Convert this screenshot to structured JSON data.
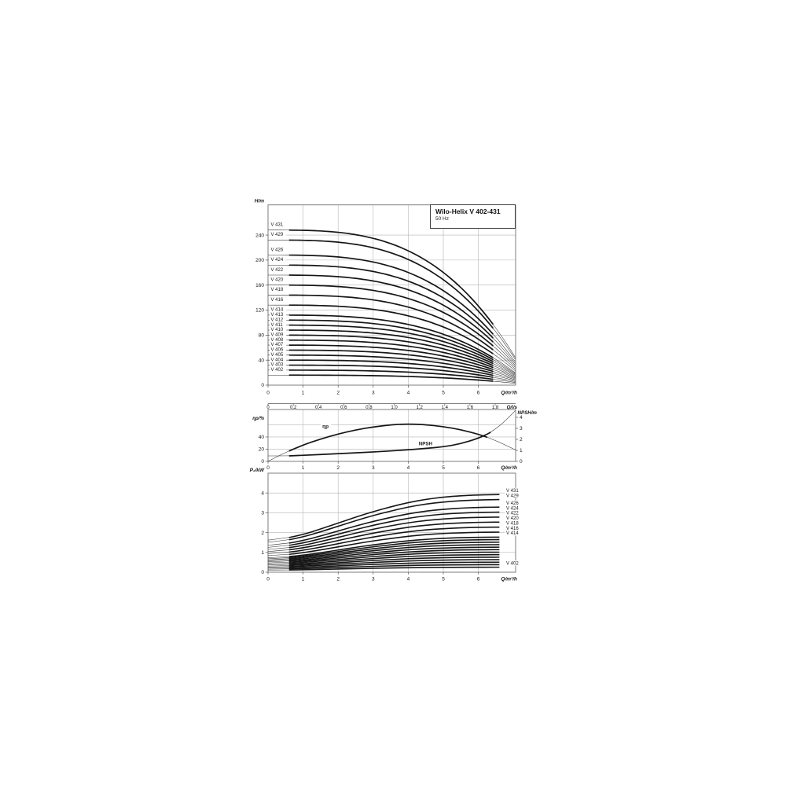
{
  "title_box": {
    "title": "Wilo-Helix V 402-431",
    "subtitle": "50 Hz"
  },
  "chart_data": [
    {
      "type": "line",
      "id": "head_curves",
      "ylabel": "H/m",
      "xlabel": "Q/m³/h",
      "xlim": [
        0,
        7.06
      ],
      "ylim": [
        0,
        288
      ],
      "xticks": [
        0,
        1,
        2,
        3,
        4,
        5,
        6
      ],
      "yticks": [
        0,
        40,
        80,
        120,
        160,
        200,
        240
      ],
      "grid": true,
      "curve_model": {
        "formula": "H = H0 · (1 − (Q/7.5)^3.2)",
        "q_zero": 7.5,
        "exponent": 3.2,
        "q_plot_end": 7.05,
        "thick_range": [
          0.6,
          6.42
        ]
      },
      "series": [
        {
          "name": "V 431",
          "shutoff_head_m": 248
        },
        {
          "name": "V 429",
          "shutoff_head_m": 232
        },
        {
          "name": "V 426",
          "shutoff_head_m": 208
        },
        {
          "name": "V 424",
          "shutoff_head_m": 192
        },
        {
          "name": "V 422",
          "shutoff_head_m": 176
        },
        {
          "name": "V 420",
          "shutoff_head_m": 160
        },
        {
          "name": "V 418",
          "shutoff_head_m": 144
        },
        {
          "name": "V 416",
          "shutoff_head_m": 128
        },
        {
          "name": "V 414",
          "shutoff_head_m": 112
        },
        {
          "name": "V 413",
          "shutoff_head_m": 104
        },
        {
          "name": "V 412",
          "shutoff_head_m": 96
        },
        {
          "name": "V 411",
          "shutoff_head_m": 88
        },
        {
          "name": "V 410",
          "shutoff_head_m": 80
        },
        {
          "name": "V 409",
          "shutoff_head_m": 72
        },
        {
          "name": "V 408",
          "shutoff_head_m": 64
        },
        {
          "name": "V 407",
          "shutoff_head_m": 56
        },
        {
          "name": "V 406",
          "shutoff_head_m": 48
        },
        {
          "name": "V 405",
          "shutoff_head_m": 40
        },
        {
          "name": "V 404",
          "shutoff_head_m": 32
        },
        {
          "name": "V 403",
          "shutoff_head_m": 24
        },
        {
          "name": "V 402",
          "shutoff_head_m": 16
        }
      ]
    },
    {
      "type": "line",
      "id": "efficiency_and_npsh",
      "top_axis": {
        "label": "Q/l/s",
        "tick_labels": [
          "0",
          "0,2",
          "0,4",
          "0,6",
          "0,8",
          "1,0",
          "1,2",
          "1,4",
          "1,6",
          "1,8"
        ],
        "tick_step_ls": 0.2,
        "ls_to_m3h": 3.6
      },
      "bottom_axis": {
        "label": "Q/m³/h",
        "ticks": [
          0,
          1,
          2,
          3,
          4,
          5,
          6
        ]
      },
      "left_axis": {
        "label": "ηp/%",
        "ticks": [
          0,
          20,
          40
        ],
        "max": 85
      },
      "right_axis": {
        "label": "NPSH/m",
        "ticks": [
          0,
          1,
          2,
          3,
          4
        ],
        "max": 4.71
      },
      "series": [
        {
          "name": "ηp",
          "axis": "left",
          "thick_range": [
            0.6,
            6.25
          ],
          "label_pos": {
            "q": 1.55,
            "pct": 56
          },
          "x": [
            0,
            0.3,
            0.6,
            1,
            1.5,
            2,
            2.5,
            3,
            3.5,
            3.8,
            4.2,
            4.5,
            5,
            5.5,
            6,
            6.3,
            6.6,
            7.05
          ],
          "y": [
            0,
            9,
            17,
            27,
            36.5,
            45,
            51.5,
            56.5,
            59.8,
            61,
            61,
            60,
            57,
            52,
            44.5,
            38.5,
            31.5,
            19
          ]
        },
        {
          "name": "NPSH",
          "axis": "right",
          "thick_range": [
            0.6,
            6.35
          ],
          "label_pos": {
            "q": 4.3,
            "m": 1.52
          },
          "x": [
            0,
            0.6,
            1,
            2,
            3,
            4,
            4.5,
            5,
            5.5,
            6,
            6.3,
            6.6,
            6.85,
            7.05
          ],
          "y": [
            0.5,
            0.5,
            0.55,
            0.7,
            0.85,
            1.05,
            1.18,
            1.32,
            1.6,
            2.1,
            2.55,
            3.2,
            3.95,
            4.6
          ]
        }
      ]
    },
    {
      "type": "line",
      "id": "power",
      "ylabel": "P₂/kW",
      "xlabel": "Q/m³/h",
      "yticks": [
        0,
        1,
        2,
        3,
        4
      ],
      "xticks": [
        0,
        1,
        2,
        3,
        4,
        5,
        6
      ],
      "ylim": [
        0,
        5
      ],
      "scaling": "P(pump) = stages/31 · P(V 431)",
      "thick_range": [
        0.6,
        6.6
      ],
      "base_curve_v431": {
        "x": [
          0,
          0.6,
          1,
          1.5,
          2,
          2.5,
          3,
          3.5,
          4,
          4.5,
          5,
          5.5,
          6,
          6.3,
          6.6
        ],
        "p_kw": [
          1.62,
          1.75,
          1.9,
          2.18,
          2.48,
          2.78,
          3.06,
          3.3,
          3.52,
          3.68,
          3.79,
          3.86,
          3.9,
          3.91,
          3.92
        ]
      },
      "series": [
        {
          "name": "V 431",
          "stages": 31,
          "labeled": true
        },
        {
          "name": "V 429",
          "stages": 29,
          "labeled": true
        },
        {
          "name": "V 426",
          "stages": 26,
          "labeled": true
        },
        {
          "name": "V 424",
          "stages": 24,
          "labeled": true
        },
        {
          "name": "V 422",
          "stages": 22,
          "labeled": true
        },
        {
          "name": "V 420",
          "stages": 20,
          "labeled": true
        },
        {
          "name": "V 418",
          "stages": 18,
          "labeled": true
        },
        {
          "name": "V 416",
          "stages": 16,
          "labeled": true
        },
        {
          "name": "V 414",
          "stages": 14,
          "labeled": true
        },
        {
          "name": "V 413",
          "stages": 13,
          "labeled": false
        },
        {
          "name": "V 412",
          "stages": 12,
          "labeled": false
        },
        {
          "name": "V 411",
          "stages": 11,
          "labeled": false
        },
        {
          "name": "V 410",
          "stages": 10,
          "labeled": false
        },
        {
          "name": "V 409",
          "stages": 9,
          "labeled": false
        },
        {
          "name": "V 408",
          "stages": 8,
          "labeled": false
        },
        {
          "name": "V 407",
          "stages": 7,
          "labeled": false
        },
        {
          "name": "V 406",
          "stages": 6,
          "labeled": false
        },
        {
          "name": "V 405",
          "stages": 5,
          "labeled": false
        },
        {
          "name": "V 404",
          "stages": 4,
          "labeled": false
        },
        {
          "name": "V 403",
          "stages": 3,
          "labeled": false
        },
        {
          "name": "V 402",
          "stages": 2,
          "labeled": true
        }
      ]
    }
  ]
}
